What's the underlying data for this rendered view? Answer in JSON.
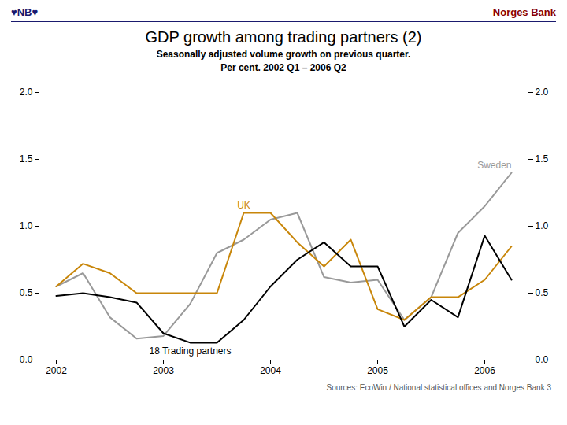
{
  "chart_data": {
    "type": "line",
    "title": "GDP growth among trading partners (2)",
    "subtitle": [
      "Seasonally adjusted volume growth on previous quarter.",
      "Per cent. 2002 Q1 – 2006 Q2"
    ],
    "source": "Sources: EcoWin / National statistical offices and Norges Bank  3",
    "annotations": [
      {
        "text": "♥NB♥",
        "color": "#1a1a6e"
      },
      {
        "text": "Norges Bank",
        "color": "#8b0000"
      }
    ],
    "categories": [
      "2002",
      null,
      null,
      null,
      "2003",
      null,
      null,
      null,
      "2004",
      null,
      null,
      null,
      "2005",
      null,
      null,
      null,
      "2006",
      null
    ],
    "series": [
      {
        "name": "Sweden",
        "color": "#999999",
        "values": [
          0.55,
          0.65,
          0.32,
          0.16,
          0.18,
          0.42,
          0.8,
          0.9,
          1.05,
          1.1,
          0.62,
          0.58,
          0.6,
          0.3,
          0.47,
          0.95,
          1.15,
          1.4
        ]
      },
      {
        "name": "UK",
        "color": "#c8860a",
        "values": [
          0.55,
          0.72,
          0.65,
          0.5,
          0.5,
          0.5,
          0.5,
          1.1,
          1.1,
          0.88,
          0.7,
          0.9,
          0.38,
          0.3,
          0.47,
          0.47,
          0.6,
          0.85
        ]
      },
      {
        "name": "18 Trading partners",
        "color": "#000000",
        "values": [
          0.48,
          0.5,
          0.47,
          0.43,
          0.2,
          0.13,
          0.13,
          0.3,
          0.55,
          0.75,
          0.88,
          0.7,
          0.7,
          0.25,
          0.45,
          0.32,
          0.93,
          0.6
        ]
      }
    ],
    "ylim": [
      0.0,
      2.0
    ],
    "yticks": [
      {
        "value": 0.0,
        "label": "0.0"
      },
      0.5,
      {
        "value": 1.0,
        "label": "1.0"
      },
      1.5,
      {
        "value": 2.0,
        "label": "2.0"
      }
    ],
    "grid": false,
    "legend": false
  }
}
